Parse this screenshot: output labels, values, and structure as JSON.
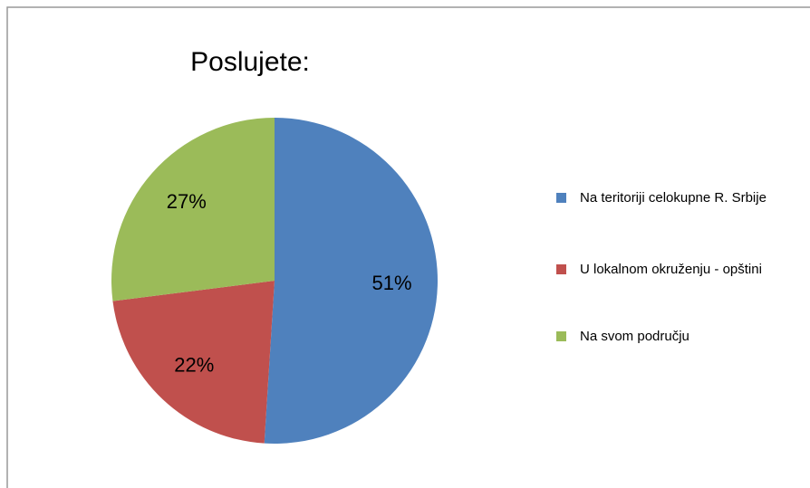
{
  "chart_data": {
    "type": "pie",
    "title": "Poslujete:",
    "categories": [
      "Na teritoriji celokupne R. Srbije",
      "U lokalnom okruženju - opštini",
      "Na svom području"
    ],
    "values": [
      51,
      22,
      27
    ],
    "value_labels": [
      "51%",
      "22%",
      "27%"
    ],
    "colors": [
      "#4f81bd",
      "#c0504d",
      "#9bbb59"
    ],
    "legend": "right"
  }
}
